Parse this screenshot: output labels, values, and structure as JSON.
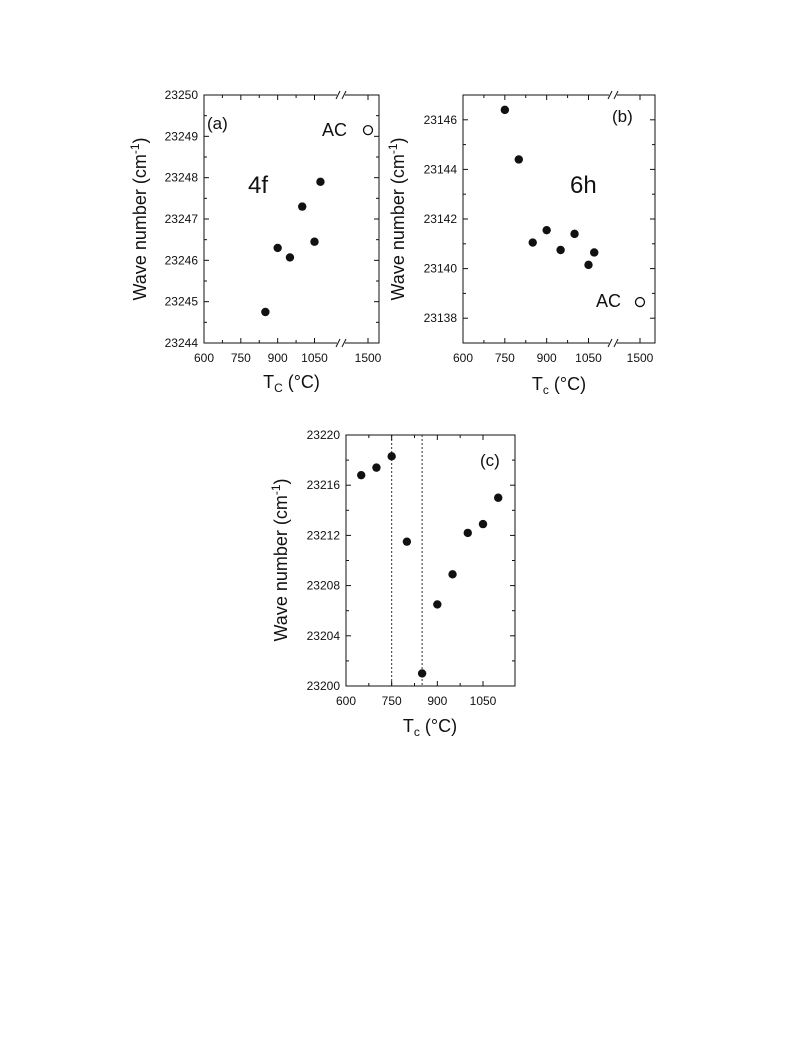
{
  "chart_data": [
    {
      "type": "scatter",
      "panel_label": "(a)",
      "annotation": "4f",
      "xlabel_main": "T",
      "xlabel_sub": "C",
      "xlabel_unit": " (°C)",
      "ylabel_main": "Wave number (cm",
      "ylabel_sup": "-1",
      "ylabel_close": ")",
      "xlim": [
        600,
        1560
      ],
      "ylim": [
        23244,
        23250
      ],
      "axis_break_x": [
        1125,
        1425
      ],
      "xticks": [
        600,
        750,
        900,
        1050,
        1500
      ],
      "xtick_labels": [
        "600",
        "750",
        "900",
        "1050",
        "1500"
      ],
      "yticks": [
        23244,
        23245,
        23246,
        23247,
        23248,
        23249,
        23250
      ],
      "ytick_labels": [
        "23244",
        "23245",
        "23246",
        "23247",
        "23248",
        "23249",
        "23250"
      ],
      "series": [
        {
          "marker": "filled-circle",
          "x": [
            850,
            900,
            950,
            1000,
            1050,
            1100
          ],
          "y": [
            23244.75,
            23246.3,
            23246.07,
            23247.3,
            23246.45,
            23247.9
          ]
        },
        {
          "marker": "open-circle",
          "label": "AC",
          "x": [
            1500
          ],
          "y": [
            23249.15
          ]
        }
      ],
      "grid": false
    },
    {
      "type": "scatter",
      "panel_label": "(b)",
      "annotation": "6h",
      "xlabel_main": "T",
      "xlabel_sub": "c",
      "xlabel_unit": " (°C)",
      "ylabel_main": "Wave number (cm",
      "ylabel_sup": "-1",
      "ylabel_close": ")",
      "xlim": [
        600,
        1560
      ],
      "ylim": [
        23137,
        23147
      ],
      "axis_break_x": [
        1125,
        1425
      ],
      "xticks": [
        600,
        750,
        900,
        1050,
        1500
      ],
      "xtick_labels": [
        "600",
        "750",
        "900",
        "1050",
        "1500"
      ],
      "yticks": [
        23138,
        23140,
        23142,
        23144,
        23146
      ],
      "ytick_labels": [
        "23138",
        "23140",
        "23142",
        "23144",
        "23146"
      ],
      "series": [
        {
          "marker": "filled-circle",
          "x": [
            750,
            800,
            850,
            900,
            950,
            1000,
            1050,
            1100
          ],
          "y": [
            23146.4,
            23144.4,
            23141.05,
            23141.55,
            23140.75,
            23141.4,
            23140.15,
            23140.65
          ]
        },
        {
          "marker": "open-circle",
          "label": "AC",
          "x": [
            1500
          ],
          "y": [
            23138.65
          ]
        }
      ],
      "grid": false
    },
    {
      "type": "scatter",
      "panel_label": "(c)",
      "xlabel_main": "T",
      "xlabel_sub": "c",
      "xlabel_unit": " (°C)",
      "ylabel_main": "Wave number (cm",
      "ylabel_sup": "-1",
      "ylabel_close": ")",
      "xlim": [
        600,
        1150
      ],
      "ylim": [
        23200,
        23220
      ],
      "xticks": [
        600,
        750,
        900,
        1050
      ],
      "xtick_labels": [
        "600",
        "750",
        "900",
        "1050"
      ],
      "yticks": [
        23200,
        23204,
        23208,
        23212,
        23216,
        23220
      ],
      "ytick_labels": [
        "23200",
        "23204",
        "23208",
        "23212",
        "23216",
        "23220"
      ],
      "vertical_lines_x": [
        750,
        850
      ],
      "series": [
        {
          "marker": "filled-circle",
          "x": [
            650,
            700,
            750,
            800,
            850,
            900,
            950,
            1000,
            1050,
            1100
          ],
          "y": [
            23216.8,
            23217.4,
            23218.3,
            23211.5,
            23201.0,
            23206.5,
            23208.9,
            23212.2,
            23212.9,
            23215.0
          ]
        }
      ],
      "grid": false
    }
  ]
}
